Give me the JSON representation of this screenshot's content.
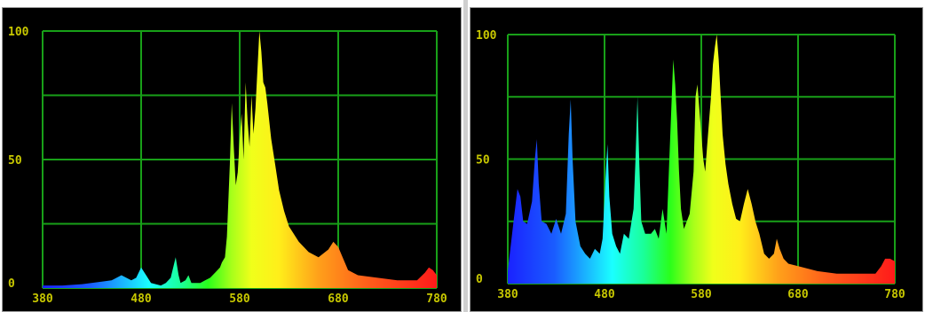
{
  "colors": {
    "background": "#000000",
    "grid": "#18a018",
    "tick_text": "#c8c800"
  },
  "chart_data": [
    {
      "type": "area",
      "title": "",
      "xlabel": "",
      "ylabel": "",
      "xlim": [
        380,
        780
      ],
      "ylim": [
        0,
        100
      ],
      "grid": true,
      "fill": "spectral wavelength rainbow gradient",
      "x_ticks": [
        "380",
        "480",
        "580",
        "680",
        "780"
      ],
      "y_ticks": [
        "100",
        "50",
        "0"
      ],
      "points": [
        [
          380,
          1
        ],
        [
          400,
          1
        ],
        [
          420,
          1.5
        ],
        [
          440,
          2.5
        ],
        [
          450,
          3
        ],
        [
          460,
          5
        ],
        [
          470,
          3
        ],
        [
          475,
          4
        ],
        [
          480,
          8
        ],
        [
          485,
          5
        ],
        [
          490,
          2
        ],
        [
          500,
          1
        ],
        [
          505,
          2
        ],
        [
          510,
          4
        ],
        [
          515,
          12
        ],
        [
          518,
          5
        ],
        [
          520,
          2
        ],
        [
          525,
          3
        ],
        [
          528,
          5
        ],
        [
          531,
          2
        ],
        [
          540,
          2
        ],
        [
          545,
          3
        ],
        [
          550,
          4
        ],
        [
          555,
          6
        ],
        [
          560,
          8
        ],
        [
          562,
          10
        ],
        [
          565,
          12
        ],
        [
          567,
          20
        ],
        [
          570,
          48
        ],
        [
          572,
          72
        ],
        [
          574,
          55
        ],
        [
          576,
          40
        ],
        [
          578,
          45
        ],
        [
          580,
          58
        ],
        [
          582,
          68
        ],
        [
          584,
          50
        ],
        [
          586,
          80
        ],
        [
          588,
          65
        ],
        [
          590,
          55
        ],
        [
          592,
          75
        ],
        [
          594,
          60
        ],
        [
          596,
          70
        ],
        [
          598,
          85
        ],
        [
          600,
          100
        ],
        [
          602,
          92
        ],
        [
          604,
          80
        ],
        [
          606,
          78
        ],
        [
          608,
          72
        ],
        [
          612,
          58
        ],
        [
          616,
          48
        ],
        [
          620,
          38
        ],
        [
          625,
          30
        ],
        [
          630,
          24
        ],
        [
          640,
          18
        ],
        [
          650,
          14
        ],
        [
          660,
          12
        ],
        [
          670,
          15
        ],
        [
          675,
          18
        ],
        [
          680,
          16
        ],
        [
          690,
          7
        ],
        [
          700,
          5
        ],
        [
          720,
          4
        ],
        [
          740,
          3
        ],
        [
          760,
          3
        ],
        [
          768,
          6
        ],
        [
          772,
          8
        ],
        [
          776,
          7
        ],
        [
          780,
          5
        ]
      ]
    },
    {
      "type": "area",
      "title": "",
      "xlabel": "",
      "ylabel": "",
      "xlim": [
        380,
        780
      ],
      "ylim": [
        0,
        100
      ],
      "grid": true,
      "fill": "spectral wavelength rainbow gradient",
      "x_ticks": [
        "380",
        "480",
        "580",
        "680",
        "780"
      ],
      "y_ticks": [
        "100",
        "50",
        "0"
      ],
      "points": [
        [
          380,
          5
        ],
        [
          386,
          25
        ],
        [
          390,
          38
        ],
        [
          393,
          35
        ],
        [
          396,
          25
        ],
        [
          400,
          24
        ],
        [
          405,
          33
        ],
        [
          408,
          50
        ],
        [
          410,
          58
        ],
        [
          412,
          40
        ],
        [
          415,
          25
        ],
        [
          420,
          24
        ],
        [
          425,
          20
        ],
        [
          430,
          26
        ],
        [
          435,
          20
        ],
        [
          440,
          28
        ],
        [
          443,
          60
        ],
        [
          445,
          74
        ],
        [
          447,
          50
        ],
        [
          450,
          25
        ],
        [
          455,
          15
        ],
        [
          460,
          12
        ],
        [
          465,
          10
        ],
        [
          470,
          14
        ],
        [
          475,
          12
        ],
        [
          478,
          18
        ],
        [
          481,
          42
        ],
        [
          483,
          56
        ],
        [
          485,
          35
        ],
        [
          488,
          20
        ],
        [
          492,
          15
        ],
        [
          496,
          12
        ],
        [
          500,
          20
        ],
        [
          505,
          18
        ],
        [
          510,
          30
        ],
        [
          512,
          50
        ],
        [
          514,
          75
        ],
        [
          516,
          48
        ],
        [
          518,
          25
        ],
        [
          522,
          20
        ],
        [
          528,
          20
        ],
        [
          532,
          22
        ],
        [
          536,
          18
        ],
        [
          540,
          30
        ],
        [
          542,
          25
        ],
        [
          544,
          20
        ],
        [
          547,
          50
        ],
        [
          549,
          70
        ],
        [
          551,
          90
        ],
        [
          553,
          80
        ],
        [
          555,
          65
        ],
        [
          557,
          45
        ],
        [
          559,
          30
        ],
        [
          562,
          22
        ],
        [
          568,
          28
        ],
        [
          572,
          45
        ],
        [
          574,
          75
        ],
        [
          576,
          80
        ],
        [
          578,
          70
        ],
        [
          580,
          60
        ],
        [
          582,
          50
        ],
        [
          584,
          45
        ],
        [
          586,
          55
        ],
        [
          588,
          65
        ],
        [
          590,
          75
        ],
        [
          592,
          88
        ],
        [
          594,
          95
        ],
        [
          596,
          100
        ],
        [
          598,
          90
        ],
        [
          600,
          75
        ],
        [
          602,
          60
        ],
        [
          605,
          48
        ],
        [
          608,
          40
        ],
        [
          612,
          32
        ],
        [
          616,
          26
        ],
        [
          620,
          25
        ],
        [
          624,
          32
        ],
        [
          628,
          38
        ],
        [
          632,
          32
        ],
        [
          636,
          25
        ],
        [
          640,
          20
        ],
        [
          645,
          12
        ],
        [
          650,
          10
        ],
        [
          655,
          12
        ],
        [
          658,
          18
        ],
        [
          661,
          14
        ],
        [
          665,
          10
        ],
        [
          670,
          8
        ],
        [
          680,
          7
        ],
        [
          700,
          5
        ],
        [
          720,
          4
        ],
        [
          740,
          4
        ],
        [
          760,
          4
        ],
        [
          766,
          7
        ],
        [
          770,
          10
        ],
        [
          775,
          10
        ],
        [
          780,
          9
        ]
      ]
    }
  ]
}
